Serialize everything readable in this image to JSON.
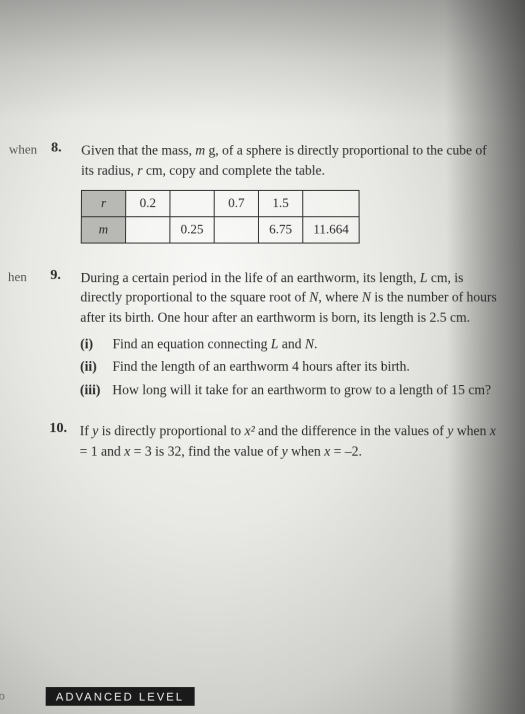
{
  "q8": {
    "marginLabel": "when",
    "number": "8.",
    "intro_a": "Given that the mass, ",
    "intro_b": " g, of a sphere is directly proportional to the cube of its radius, ",
    "intro_c": " cm, copy and complete the table.",
    "var_m": "m",
    "var_r": "r",
    "table": {
      "rowHeaders": [
        "r",
        "m"
      ],
      "row1": [
        "0.2",
        "",
        "0.7",
        "1.5",
        ""
      ],
      "row2": [
        "",
        "0.25",
        "",
        "6.75",
        "11.664"
      ]
    }
  },
  "q9": {
    "marginLabel": "hen",
    "number": "9.",
    "intro_a": "During a certain period in the life of an earthworm, its length, ",
    "intro_b": " cm, is directly proportional to the square root of ",
    "intro_c": ", where ",
    "intro_d": " is the number of hours after its birth. One hour after an earthworm is born, its length is 2.5 cm.",
    "var_L": "L",
    "var_N": "N",
    "parts": {
      "i": {
        "label": "(i)",
        "text_a": "Find an equation connecting ",
        "text_b": " and ",
        "text_c": "."
      },
      "ii": {
        "label": "(ii)",
        "text": "Find the length of an earthworm 4 hours after its birth."
      },
      "iii": {
        "label": "(iii)",
        "text": "How long will it take for an earthworm to grow to a length of 15 cm?"
      }
    }
  },
  "q10": {
    "number": "10.",
    "text_a": "If ",
    "text_b": " is directly proportional to ",
    "text_c": " and the difference in the values of ",
    "text_d": " when ",
    "text_e": " = 1 and ",
    "text_f": " = 3 is 32, find the value of ",
    "text_g": " when ",
    "text_h": " = –2.",
    "var_y": "y",
    "var_x": "x",
    "var_x2": "x²"
  },
  "footer": {
    "advanced": "ADVANCED LEVEL",
    "edge": "o"
  }
}
